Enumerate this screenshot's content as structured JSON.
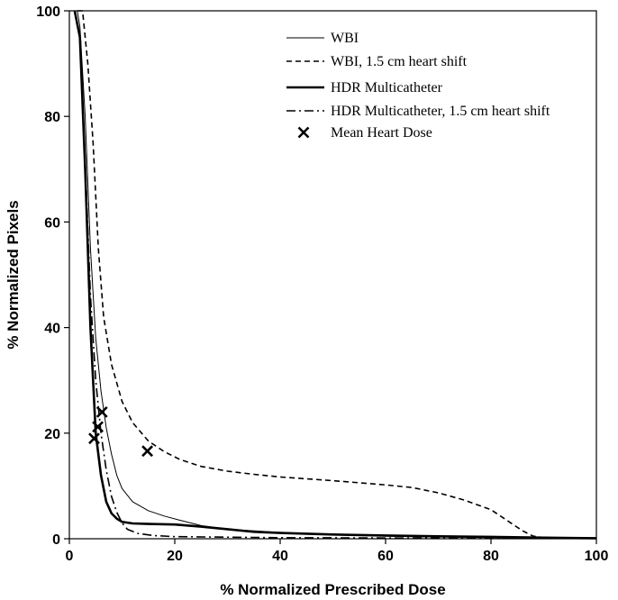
{
  "chart_data": {
    "type": "line",
    "title": "",
    "xlabel": "% Normalized  Prescribed Dose",
    "ylabel": "% Normalized  Pixels",
    "xlim": [
      0,
      100
    ],
    "ylim": [
      0,
      100
    ],
    "xticks": [
      "0",
      "20",
      "40",
      "60",
      "80",
      "100"
    ],
    "yticks": [
      "0",
      "20",
      "40",
      "60",
      "80",
      "100"
    ],
    "grid": false,
    "legend_position": "top-right",
    "series": [
      {
        "name": "WBI",
        "style": "thin-solid",
        "color": "#000000",
        "points": [
          [
            1.5,
            100
          ],
          [
            2,
            97
          ],
          [
            3,
            80
          ],
          [
            4,
            55
          ],
          [
            5,
            38
          ],
          [
            6,
            28
          ],
          [
            7,
            21
          ],
          [
            8,
            16
          ],
          [
            9,
            12
          ],
          [
            10,
            9.5
          ],
          [
            12,
            7
          ],
          [
            15,
            5.3
          ],
          [
            18,
            4.3
          ],
          [
            21,
            3.5
          ],
          [
            25,
            2.5
          ],
          [
            30,
            1.8
          ],
          [
            40,
            1.2
          ],
          [
            50,
            0.8
          ],
          [
            60,
            0.5
          ],
          [
            70,
            0.35
          ],
          [
            80,
            0.25
          ],
          [
            90,
            0.15
          ],
          [
            100,
            0.1
          ]
        ]
      },
      {
        "name": "WBI, 1.5 cm heart shift",
        "style": "dashed",
        "color": "#000000",
        "points": [
          [
            1.5,
            100
          ],
          [
            2.5,
            100
          ],
          [
            3.5,
            90
          ],
          [
            4.5,
            75
          ],
          [
            5.5,
            55
          ],
          [
            6.5,
            42
          ],
          [
            8,
            33
          ],
          [
            10,
            26
          ],
          [
            12,
            22
          ],
          [
            15,
            18.5
          ],
          [
            18,
            16.5
          ],
          [
            21,
            15
          ],
          [
            25,
            13.7
          ],
          [
            30,
            12.8
          ],
          [
            35,
            12.2
          ],
          [
            40,
            11.7
          ],
          [
            50,
            11
          ],
          [
            55,
            10.6
          ],
          [
            60,
            10.2
          ],
          [
            65,
            9.7
          ],
          [
            70,
            8.7
          ],
          [
            75,
            7.3
          ],
          [
            80,
            5.5
          ],
          [
            83,
            3.5
          ],
          [
            86,
            1.5
          ],
          [
            88,
            0.5
          ],
          [
            90,
            0.2
          ],
          [
            100,
            0.1
          ]
        ]
      },
      {
        "name": "HDR Multicatheter",
        "style": "thick-solid",
        "color": "#000000",
        "points": [
          [
            1,
            100
          ],
          [
            2,
            95
          ],
          [
            3,
            70
          ],
          [
            4,
            40
          ],
          [
            5,
            20
          ],
          [
            6,
            12
          ],
          [
            7,
            7
          ],
          [
            8,
            4.8
          ],
          [
            9,
            3.8
          ],
          [
            10,
            3.2
          ],
          [
            12,
            2.9
          ],
          [
            15,
            2.8
          ],
          [
            20,
            2.7
          ],
          [
            25,
            2.3
          ],
          [
            30,
            1.8
          ],
          [
            35,
            1.3
          ],
          [
            40,
            1.1
          ],
          [
            50,
            0.8
          ],
          [
            60,
            0.6
          ],
          [
            70,
            0.45
          ],
          [
            80,
            0.35
          ],
          [
            90,
            0.2
          ],
          [
            100,
            0.1
          ]
        ]
      },
      {
        "name": "HDR Multicatheter, 1.5 cm heart shift",
        "style": "dash-dot",
        "color": "#000000",
        "points": [
          [
            1,
            100
          ],
          [
            2,
            95
          ],
          [
            3,
            72
          ],
          [
            4,
            46
          ],
          [
            5,
            30
          ],
          [
            6,
            20
          ],
          [
            7,
            13
          ],
          [
            8,
            8
          ],
          [
            9,
            5
          ],
          [
            10,
            3
          ],
          [
            11,
            1.8
          ],
          [
            13,
            1
          ],
          [
            16,
            0.6
          ],
          [
            20,
            0.4
          ],
          [
            30,
            0.3
          ],
          [
            40,
            0.2
          ],
          [
            60,
            0.15
          ],
          [
            80,
            0.1
          ],
          [
            100,
            0.1
          ]
        ]
      },
      {
        "name": "Mean Heart Dose",
        "style": "x-marker",
        "color": "#000000",
        "points": [
          [
            4.7,
            19
          ],
          [
            5.4,
            21.2
          ],
          [
            6.2,
            24
          ],
          [
            14.8,
            16.6
          ]
        ]
      }
    ]
  }
}
